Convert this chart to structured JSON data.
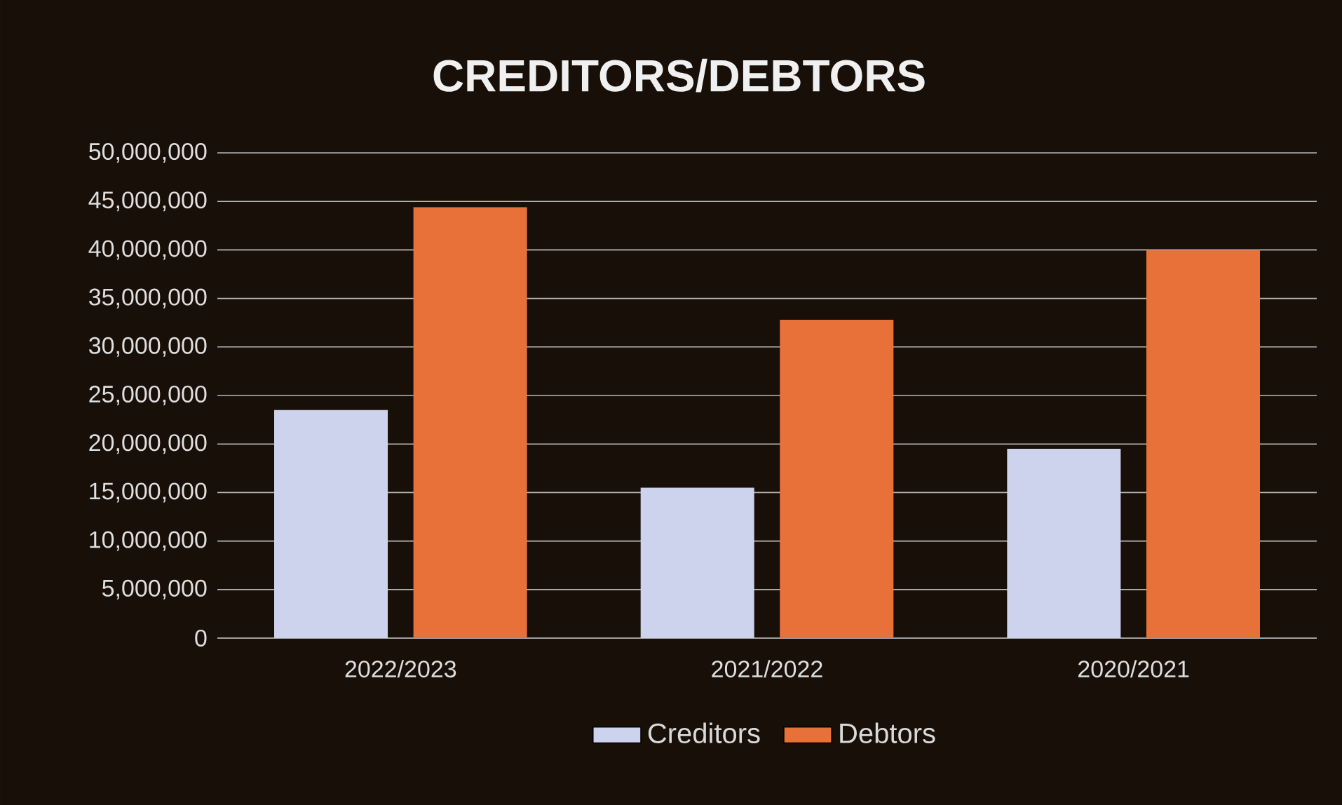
{
  "chart_data": {
    "type": "bar",
    "title": "CREDITORS/DEBTORS",
    "categories": [
      "2022/2023",
      "2021/2022",
      "2020/2021"
    ],
    "series": [
      {
        "name": "Creditors",
        "color": "#cdd3ec",
        "values": [
          23500000,
          15500000,
          19500000
        ]
      },
      {
        "name": "Debtors",
        "color": "#e8713a",
        "values": [
          44400000,
          32800000,
          40000000
        ]
      }
    ],
    "ylim": [
      0,
      50000000
    ],
    "yticks": [
      {
        "value": 0,
        "label": "0"
      },
      {
        "value": 5000000,
        "label": "5,000,000"
      },
      {
        "value": 10000000,
        "label": "10,000,000"
      },
      {
        "value": 15000000,
        "label": "15,000,000"
      },
      {
        "value": 20000000,
        "label": "20,000,000"
      },
      {
        "value": 25000000,
        "label": "25,000,000"
      },
      {
        "value": 30000000,
        "label": "30,000,000"
      },
      {
        "value": 35000000,
        "label": "35,000,000"
      },
      {
        "value": 40000000,
        "label": "40,000,000"
      },
      {
        "value": 45000000,
        "label": "45,000,000"
      },
      {
        "value": 50000000,
        "label": "50,000,000"
      }
    ],
    "grid": "y",
    "legend": "bottom"
  }
}
